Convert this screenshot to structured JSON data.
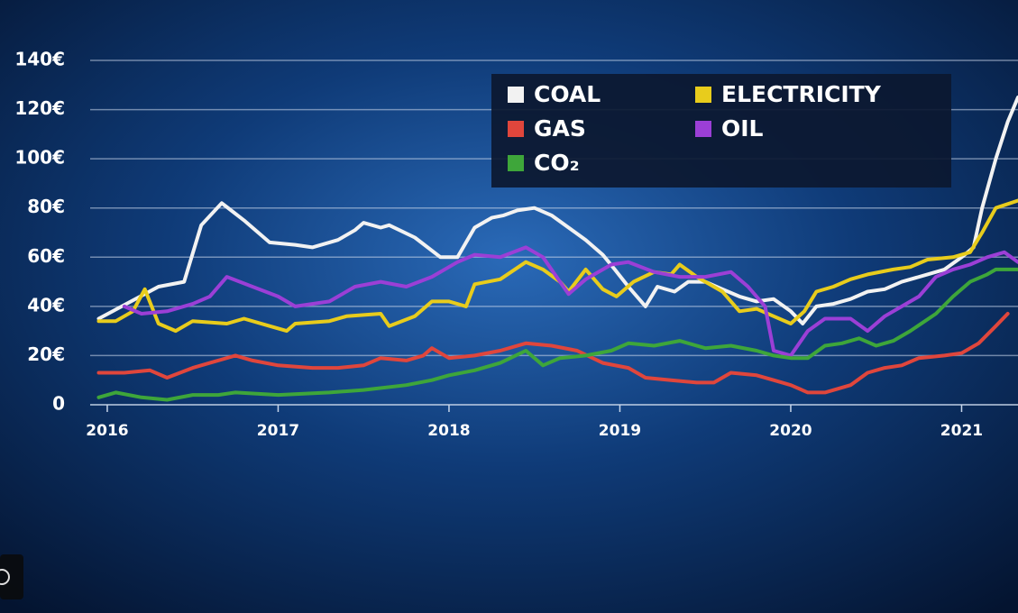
{
  "chart_data": {
    "type": "line",
    "xlim": [
      2015.9,
      2021.33
    ],
    "xticks": [
      2016,
      2017,
      2018,
      2019,
      2020,
      2021
    ],
    "ylim": [
      0,
      140
    ],
    "yticks": [
      0,
      {
        "value": 20,
        "label": "20€"
      },
      {
        "value": 40,
        "label": "40€"
      },
      {
        "value": 60,
        "label": "60€"
      },
      {
        "value": 80,
        "label": "80€"
      },
      {
        "value": 100,
        "label": "100€"
      },
      {
        "value": 120,
        "label": "120€"
      },
      {
        "value": 140,
        "label": "140€"
      }
    ],
    "grid": true,
    "series": [
      {
        "name": "COAL",
        "color": "#f2f2f2",
        "x": [
          2015.95,
          2016.3,
          2016.45,
          2016.55,
          2016.67,
          2016.8,
          2016.95,
          2017.1,
          2017.2,
          2017.35,
          2017.45,
          2017.5,
          2017.6,
          2017.65,
          2017.8,
          2017.95,
          2018.05,
          2018.15,
          2018.25,
          2018.32,
          2018.4,
          2018.5,
          2018.6,
          2018.7,
          2018.8,
          2018.9,
          2018.97,
          2019.05,
          2019.15,
          2019.22,
          2019.32,
          2019.4,
          2019.5,
          2019.6,
          2019.7,
          2019.8,
          2019.9,
          2020.0,
          2020.07,
          2020.15,
          2020.25,
          2020.35,
          2020.45,
          2020.55,
          2020.65,
          2020.8,
          2020.9,
          2021.0,
          2021.07,
          2021.12,
          2021.2,
          2021.27,
          2021.33
        ],
        "values": [
          35,
          48,
          50,
          73,
          82,
          75,
          66,
          65,
          64,
          67,
          71,
          74,
          72,
          73,
          68,
          60,
          60,
          72,
          76,
          77,
          79,
          80,
          77,
          72,
          67,
          61,
          55,
          48,
          40,
          48,
          46,
          50,
          50,
          47,
          44,
          42,
          43,
          38,
          33,
          40,
          41,
          43,
          46,
          47,
          50,
          53,
          55,
          60,
          64,
          80,
          100,
          115,
          125
        ]
      },
      {
        "name": "ELECTRICITY",
        "color": "#e8cc1c",
        "x": [
          2015.95,
          2016.05,
          2016.15,
          2016.22,
          2016.3,
          2016.4,
          2016.5,
          2016.7,
          2016.8,
          2016.95,
          2017.05,
          2017.1,
          2017.3,
          2017.4,
          2017.6,
          2017.65,
          2017.8,
          2017.9,
          2018.0,
          2018.1,
          2018.15,
          2018.3,
          2018.45,
          2018.55,
          2018.65,
          2018.7,
          2018.8,
          2018.9,
          2018.98,
          2019.08,
          2019.2,
          2019.3,
          2019.35,
          2019.45,
          2019.6,
          2019.7,
          2019.8,
          2019.9,
          2020.0,
          2020.08,
          2020.15,
          2020.25,
          2020.35,
          2020.45,
          2020.6,
          2020.7,
          2020.8,
          2020.95,
          2021.05,
          2021.12,
          2021.2,
          2021.33
        ],
        "values": [
          34,
          34,
          38,
          47,
          33,
          30,
          34,
          33,
          35,
          32,
          30,
          33,
          34,
          36,
          37,
          32,
          36,
          42,
          42,
          40,
          49,
          51,
          58,
          55,
          50,
          46,
          55,
          47,
          44,
          50,
          54,
          53,
          57,
          52,
          46,
          38,
          39,
          36,
          33,
          38,
          46,
          48,
          51,
          53,
          55,
          56,
          59,
          60,
          62,
          70,
          80,
          83
        ]
      },
      {
        "name": "GAS",
        "color": "#e0463c",
        "x": [
          2015.95,
          2016.1,
          2016.25,
          2016.35,
          2016.5,
          2016.6,
          2016.75,
          2016.85,
          2017.0,
          2017.2,
          2017.35,
          2017.5,
          2017.6,
          2017.75,
          2017.85,
          2017.9,
          2018.0,
          2018.15,
          2018.3,
          2018.45,
          2018.6,
          2018.75,
          2018.9,
          2019.05,
          2019.15,
          2019.3,
          2019.45,
          2019.55,
          2019.65,
          2019.8,
          2019.9,
          2020.0,
          2020.1,
          2020.2,
          2020.35,
          2020.45,
          2020.55,
          2020.65,
          2020.75,
          2020.9,
          2021.0,
          2021.1,
          2021.2,
          2021.27
        ],
        "values": [
          13,
          13,
          14,
          11,
          15,
          17,
          20,
          18,
          16,
          15,
          15,
          16,
          19,
          18,
          20,
          23,
          19,
          20,
          22,
          25,
          24,
          22,
          17,
          15,
          11,
          10,
          9,
          9,
          13,
          12,
          10,
          8,
          5,
          5,
          8,
          13,
          15,
          16,
          19,
          20,
          21,
          25,
          32,
          37
        ]
      },
      {
        "name": "OIL",
        "color": "#9b3fd6",
        "x": [
          2016.1,
          2016.2,
          2016.35,
          2016.5,
          2016.6,
          2016.7,
          2016.85,
          2017.0,
          2017.1,
          2017.3,
          2017.45,
          2017.6,
          2017.75,
          2017.9,
          2018.05,
          2018.15,
          2018.3,
          2018.45,
          2018.55,
          2018.65,
          2018.7,
          2018.8,
          2018.95,
          2019.05,
          2019.2,
          2019.35,
          2019.5,
          2019.65,
          2019.75,
          2019.85,
          2019.9,
          2020.0,
          2020.1,
          2020.2,
          2020.35,
          2020.45,
          2020.55,
          2020.65,
          2020.75,
          2020.85,
          2020.95,
          2021.05,
          2021.15,
          2021.25,
          2021.33
        ],
        "values": [
          40,
          37,
          38,
          41,
          44,
          52,
          48,
          44,
          40,
          42,
          48,
          50,
          48,
          52,
          58,
          61,
          60,
          64,
          60,
          50,
          45,
          51,
          57,
          58,
          54,
          52,
          52,
          54,
          48,
          40,
          22,
          20,
          30,
          35,
          35,
          30,
          36,
          40,
          44,
          52,
          55,
          57,
          60,
          62,
          58
        ]
      },
      {
        "name": "CO₂",
        "color": "#3ea63a",
        "x": [
          2015.95,
          2016.05,
          2016.2,
          2016.35,
          2016.5,
          2016.65,
          2016.75,
          2017.0,
          2017.3,
          2017.5,
          2017.75,
          2017.9,
          2018.0,
          2018.15,
          2018.3,
          2018.45,
          2018.55,
          2018.65,
          2018.8,
          2018.95,
          2019.05,
          2019.2,
          2019.35,
          2019.5,
          2019.65,
          2019.8,
          2019.9,
          2020.0,
          2020.1,
          2020.2,
          2020.3,
          2020.4,
          2020.5,
          2020.6,
          2020.7,
          2020.85,
          2020.95,
          2021.05,
          2021.15,
          2021.2,
          2021.33
        ],
        "values": [
          3,
          5,
          3,
          2,
          4,
          4,
          5,
          4,
          5,
          6,
          8,
          10,
          12,
          14,
          17,
          22,
          16,
          19,
          20,
          22,
          25,
          24,
          26,
          23,
          24,
          22,
          20,
          19,
          19,
          24,
          25,
          27,
          24,
          26,
          30,
          37,
          44,
          50,
          53,
          55,
          55
        ]
      }
    ]
  }
}
